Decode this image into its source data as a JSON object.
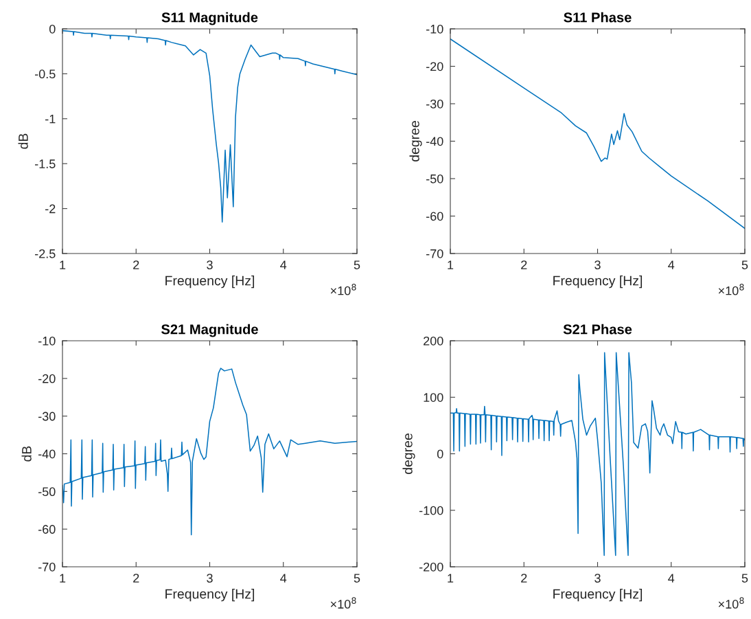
{
  "chart_data": [
    {
      "type": "line",
      "title": "S11 Magnitude",
      "xlabel": "Frequency [Hz]",
      "ylabel": "dB",
      "annotations": [
        "×10$^{8}$"
      ],
      "xlim": [
        1,
        5
      ],
      "xticks": [
        1,
        2,
        3,
        4,
        5
      ],
      "ylim": [
        -2.5,
        0
      ],
      "yticks": [
        -2.5,
        -2,
        -1.5,
        -1,
        -0.5,
        0
      ],
      "x": [
        1.0,
        1.145,
        1.15,
        1.155,
        1.3,
        1.395,
        1.4,
        1.405,
        1.6,
        1.645,
        1.65,
        1.655,
        1.895,
        1.9,
        1.905,
        2.0,
        2.145,
        2.15,
        2.155,
        2.3,
        2.395,
        2.4,
        2.405,
        2.48,
        2.67,
        2.78,
        2.87,
        2.95,
        3.0,
        3.04,
        3.09,
        3.12,
        3.15,
        3.17,
        3.21,
        3.24,
        3.28,
        3.32,
        3.35,
        3.38,
        3.41,
        3.48,
        3.56,
        3.68,
        3.85,
        3.9,
        3.945,
        3.95,
        3.955,
        4.0,
        4.2,
        4.295,
        4.3,
        4.305,
        4.4,
        4.6,
        4.695,
        4.7,
        4.705,
        4.8,
        5.0
      ],
      "series": [
        {
          "color": "#0072bd",
          "values": [
            -0.02,
            -0.03,
            -0.07,
            -0.03,
            -0.05,
            -0.05,
            -0.09,
            -0.05,
            -0.07,
            -0.07,
            -0.11,
            -0.07,
            -0.08,
            -0.12,
            -0.08,
            -0.09,
            -0.1,
            -0.15,
            -0.1,
            -0.11,
            -0.13,
            -0.18,
            -0.13,
            -0.15,
            -0.19,
            -0.29,
            -0.23,
            -0.27,
            -0.52,
            -0.9,
            -1.29,
            -1.49,
            -1.77,
            -2.15,
            -1.35,
            -1.88,
            -1.29,
            -1.98,
            -0.98,
            -0.65,
            -0.5,
            -0.34,
            -0.18,
            -0.31,
            -0.27,
            -0.27,
            -0.29,
            -0.34,
            -0.29,
            -0.32,
            -0.33,
            -0.36,
            -0.41,
            -0.36,
            -0.39,
            -0.43,
            -0.45,
            -0.5,
            -0.45,
            -0.47,
            -0.51
          ]
        }
      ]
    },
    {
      "type": "line",
      "title": "S11 Phase",
      "xlabel": "Frequency [Hz]",
      "ylabel": "degree",
      "annotations": [
        "×10$^{8}$"
      ],
      "xlim": [
        1,
        5
      ],
      "xticks": [
        1,
        2,
        3,
        4,
        5
      ],
      "ylim": [
        -70,
        -10
      ],
      "yticks": [
        -70,
        -60,
        -50,
        -40,
        -30,
        -20,
        -10
      ],
      "x": [
        1.0,
        2.0,
        2.5,
        2.7,
        2.85,
        2.95,
        3.05,
        3.1,
        3.13,
        3.19,
        3.22,
        3.27,
        3.3,
        3.36,
        3.4,
        3.47,
        3.6,
        3.7,
        3.85,
        4.0,
        4.5,
        5.0
      ],
      "series": [
        {
          "color": "#0072bd",
          "values": [
            -12.7,
            -25.8,
            -32.3,
            -35.9,
            -37.8,
            -41.4,
            -45.4,
            -44.5,
            -44.8,
            -38.1,
            -40.9,
            -37.2,
            -39.6,
            -32.6,
            -35.7,
            -37.5,
            -42.7,
            -44.5,
            -46.9,
            -49.3,
            -56.0,
            -63.3
          ]
        }
      ]
    },
    {
      "type": "line",
      "title": "S21 Magnitude",
      "xlabel": "Frequency [Hz]",
      "ylabel": "dB",
      "annotations": [
        "×10$^{8}$"
      ],
      "xlim": [
        1,
        5
      ],
      "xticks": [
        1,
        2,
        3,
        4,
        5
      ],
      "ylim": [
        -70,
        -10
      ],
      "yticks": [
        -70,
        -60,
        -50,
        -40,
        -30,
        -20,
        -10
      ],
      "x": [
        1.0,
        1.015,
        1.025,
        1.105,
        1.115,
        1.121,
        1.128,
        1.255,
        1.264,
        1.27,
        1.277,
        1.396,
        1.404,
        1.41,
        1.417,
        1.54,
        1.547,
        1.553,
        1.56,
        1.683,
        1.69,
        1.696,
        1.703,
        1.829,
        1.836,
        1.842,
        1.849,
        1.978,
        1.985,
        1.991,
        1.998,
        2.118,
        2.125,
        2.131,
        2.138,
        2.258,
        2.265,
        2.271,
        2.278,
        2.326,
        2.333,
        2.34,
        2.4,
        2.425,
        2.433,
        2.445,
        2.476,
        2.482,
        2.489,
        2.615,
        2.622,
        2.629,
        2.7,
        2.74,
        2.75,
        2.765,
        2.82,
        2.88,
        2.92,
        2.95,
        3.0,
        3.05,
        3.12,
        3.15,
        3.2,
        3.3,
        3.35,
        3.45,
        3.5,
        3.55,
        3.6,
        3.65,
        3.7,
        3.72,
        3.75,
        3.8,
        3.87,
        3.95,
        4.05,
        4.1,
        4.2,
        4.3,
        4.5,
        4.7,
        5.0
      ],
      "series": [
        {
          "color": "#0072bd",
          "values": [
            -48.4,
            -53,
            -48.0,
            -47.6,
            -36.3,
            -53.9,
            -47.4,
            -46.5,
            -36.3,
            -52.1,
            -46.3,
            -45.8,
            -36.3,
            -51.5,
            -45.6,
            -45.0,
            -37.2,
            -50.2,
            -44.8,
            -44.3,
            -37.5,
            -49.6,
            -44.1,
            -43.7,
            -37.5,
            -48.7,
            -43.5,
            -43.2,
            -36.6,
            -49.2,
            -43.0,
            -42.6,
            -38.1,
            -47.0,
            -42.4,
            -42.0,
            -37.2,
            -45.8,
            -41.8,
            -41.6,
            -36.3,
            -42.0,
            -41.7,
            -45.4,
            -50.0,
            -41.5,
            -41.3,
            -38.5,
            -41.3,
            -40.5,
            -36.9,
            -40.3,
            -39.0,
            -42.3,
            -61.5,
            -42.0,
            -36.0,
            -39.9,
            -41.5,
            -40.8,
            -31.4,
            -27.8,
            -18.6,
            -17.3,
            -18.0,
            -17.5,
            -21.1,
            -27.1,
            -29.6,
            -39.3,
            -37.8,
            -35.3,
            -41.1,
            -50.2,
            -37.5,
            -34.7,
            -38.7,
            -36.6,
            -40.8,
            -36.3,
            -37.5,
            -37.2,
            -36.6,
            -37.2,
            -36.7
          ]
        }
      ]
    },
    {
      "type": "line",
      "title": "S21 Phase",
      "xlabel": "Frequency [Hz]",
      "ylabel": "degree",
      "annotations": [
        "×10$^{8}$"
      ],
      "xlim": [
        1,
        5
      ],
      "xticks": [
        1,
        2,
        3,
        4,
        5
      ],
      "ylim": [
        -200,
        200
      ],
      "yticks": [
        -200,
        -100,
        0,
        100,
        200
      ],
      "x": [
        1.0,
        1.041,
        1.047,
        1.053,
        1.079,
        1.085,
        1.091,
        1.118,
        1.124,
        1.13,
        1.193,
        1.199,
        1.205,
        1.268,
        1.274,
        1.28,
        1.342,
        1.348,
        1.354,
        1.404,
        1.41,
        1.416,
        1.459,
        1.465,
        1.473,
        1.479,
        1.485,
        1.55,
        1.556,
        1.562,
        1.622,
        1.628,
        1.634,
        1.693,
        1.699,
        1.705,
        1.762,
        1.768,
        1.774,
        1.839,
        1.845,
        1.851,
        1.908,
        1.914,
        1.92,
        1.979,
        1.985,
        1.991,
        2.057,
        2.063,
        2.069,
        2.11,
        2.119,
        2.125,
        2.131,
        2.197,
        2.203,
        2.209,
        2.268,
        2.274,
        2.28,
        2.337,
        2.343,
        2.349,
        2.399,
        2.405,
        2.411,
        2.45,
        2.47,
        2.492,
        2.498,
        2.504,
        2.58,
        2.65,
        2.7,
        2.72,
        2.735,
        2.745,
        2.76,
        2.8,
        2.85,
        2.9,
        2.97,
        3.0,
        3.05,
        3.09,
        3.095,
        3.17,
        3.245,
        3.253,
        3.35,
        3.415,
        3.425,
        3.46,
        3.49,
        3.55,
        3.6,
        3.65,
        3.68,
        3.7,
        3.71,
        3.74,
        3.76,
        3.8,
        3.85,
        3.87,
        3.9,
        3.95,
        4.0,
        4.02,
        4.06,
        4.1,
        4.14,
        4.145,
        4.15,
        4.2,
        4.295,
        4.3,
        4.305,
        4.4,
        4.515,
        4.52,
        4.525,
        4.635,
        4.64,
        4.645,
        4.795,
        4.8,
        4.805,
        4.885,
        4.89,
        4.895,
        4.975,
        4.98,
        4.985,
        5.0
      ],
      "series": [
        {
          "color": "#0072bd",
          "values": [
            72,
            72,
            5,
            72,
            73,
            80,
            72,
            72,
            5,
            72,
            71,
            13,
            71,
            70,
            17,
            70,
            70,
            17,
            70,
            69,
            19,
            69,
            69,
            84,
            69,
            21,
            69,
            68,
            7,
            68,
            67,
            21,
            67,
            66,
            -3,
            66,
            65,
            23,
            65,
            64,
            25,
            64,
            63,
            21,
            63,
            62,
            22,
            62,
            61,
            21,
            62,
            68,
            63,
            25,
            61,
            60,
            27,
            60,
            59,
            23,
            59,
            58,
            23,
            58,
            57,
            33,
            60,
            76,
            58,
            52,
            31,
            52,
            56,
            59,
            21,
            -8,
            -141,
            140,
            114,
            61,
            33,
            49,
            63,
            25,
            -52,
            -180,
            179,
            -5,
            -180,
            179,
            -20,
            -180,
            179,
            126,
            20,
            10,
            49,
            53,
            40,
            5,
            -34,
            94,
            80,
            45,
            33,
            45,
            53,
            33,
            29,
            18,
            57,
            39,
            38,
            9,
            38,
            35,
            38,
            5,
            38,
            43,
            33,
            7,
            33,
            30,
            9,
            30,
            30,
            3,
            30,
            29,
            9,
            29,
            27,
            13,
            27,
            25
          ]
        }
      ]
    }
  ]
}
